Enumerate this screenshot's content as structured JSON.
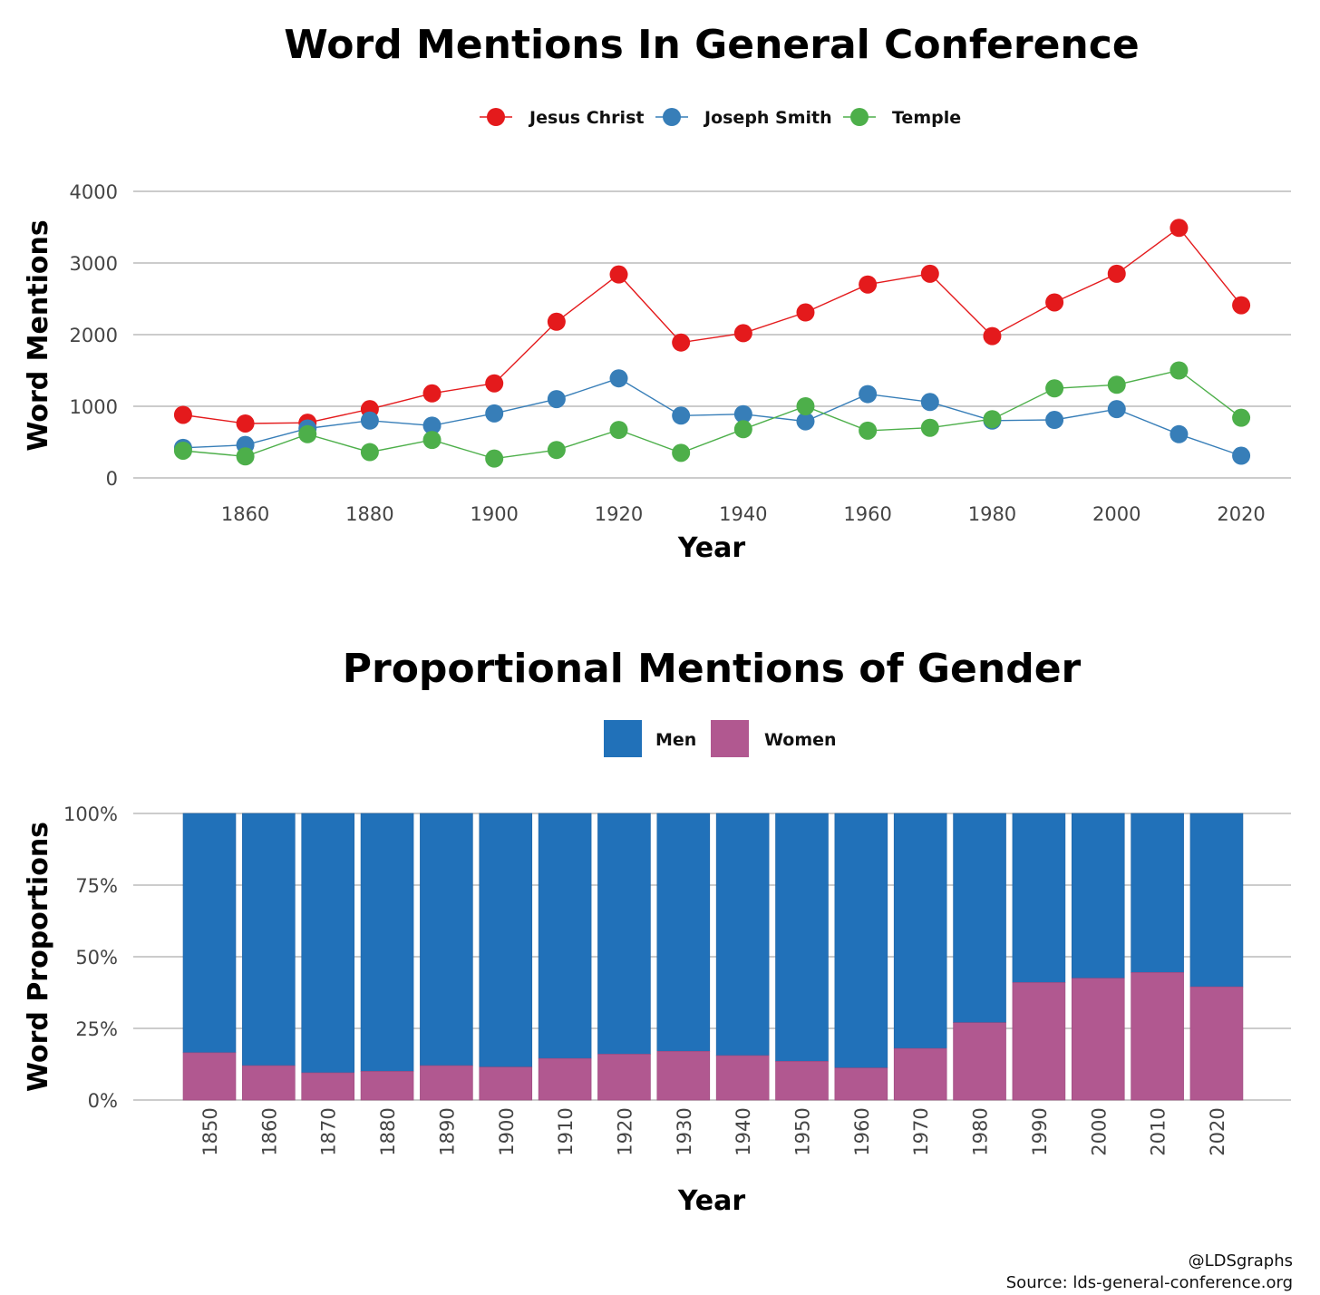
{
  "chart_data": [
    {
      "type": "line",
      "title": "Word Mentions In General Conference",
      "xlabel": "Year",
      "ylabel": "Word Mentions",
      "x": [
        1850,
        1860,
        1870,
        1880,
        1890,
        1900,
        1910,
        1920,
        1930,
        1940,
        1950,
        1960,
        1970,
        1980,
        1990,
        2000,
        2010,
        2020
      ],
      "xticks": [
        "1860",
        "1880",
        "1900",
        "1920",
        "1940",
        "1960",
        "1980",
        "2000",
        "2020"
      ],
      "xtick_values": [
        1860,
        1880,
        1900,
        1920,
        1940,
        1960,
        1980,
        2000,
        2020
      ],
      "yticks": [
        "0",
        "1000",
        "2000",
        "3000",
        "4000"
      ],
      "ytick_values": [
        0,
        1000,
        2000,
        3000,
        4000
      ],
      "xlim": [
        1842,
        2028
      ],
      "ylim": [
        0,
        4000
      ],
      "grid": "horizontal",
      "legend_position": "top",
      "series": [
        {
          "name": "Jesus Christ",
          "color": "#e41a1c",
          "values": [
            880,
            760,
            770,
            960,
            1180,
            1320,
            2180,
            2840,
            1890,
            2020,
            2310,
            2700,
            2850,
            1980,
            2450,
            2850,
            3490,
            2410
          ]
        },
        {
          "name": "Joseph Smith",
          "color": "#377eb8",
          "values": [
            420,
            460,
            690,
            800,
            730,
            900,
            1100,
            1390,
            870,
            890,
            790,
            1170,
            1060,
            800,
            810,
            960,
            610,
            310
          ]
        },
        {
          "name": "Temple",
          "color": "#4daf4a",
          "values": [
            380,
            300,
            610,
            360,
            530,
            270,
            390,
            670,
            350,
            680,
            1000,
            660,
            700,
            820,
            1250,
            1300,
            1500,
            840
          ]
        }
      ]
    },
    {
      "type": "bar",
      "stacked": true,
      "title": "Proportional Mentions of Gender",
      "xlabel": "Year",
      "ylabel": "Word Proportions",
      "categories": [
        "1850",
        "1860",
        "1870",
        "1880",
        "1890",
        "1900",
        "1910",
        "1920",
        "1930",
        "1940",
        "1950",
        "1960",
        "1970",
        "1980",
        "1990",
        "2000",
        "2010",
        "2020"
      ],
      "yticks": [
        "0%",
        "25%",
        "50%",
        "75%",
        "100%"
      ],
      "ytick_values": [
        0,
        25,
        50,
        75,
        100
      ],
      "ylim": [
        0,
        100
      ],
      "grid": "horizontal",
      "legend_position": "top",
      "series": [
        {
          "name": "Women",
          "color": "#b15890",
          "values": [
            16.5,
            12,
            9.5,
            10,
            12,
            11.5,
            14.5,
            16,
            17,
            15.5,
            13.5,
            11.2,
            18,
            27,
            41,
            42.5,
            44.5,
            39.5
          ]
        },
        {
          "name": "Men",
          "color": "#2171b9",
          "values": [
            83.5,
            88,
            90.5,
            90,
            88,
            88.5,
            85.5,
            84,
            83,
            84.5,
            86.5,
            88.8,
            82,
            73,
            59,
            57.5,
            55.5,
            60.5
          ]
        }
      ]
    }
  ],
  "credit": {
    "handle": "@LDSgraphs",
    "source": "Source: lds-general-conference.org"
  }
}
